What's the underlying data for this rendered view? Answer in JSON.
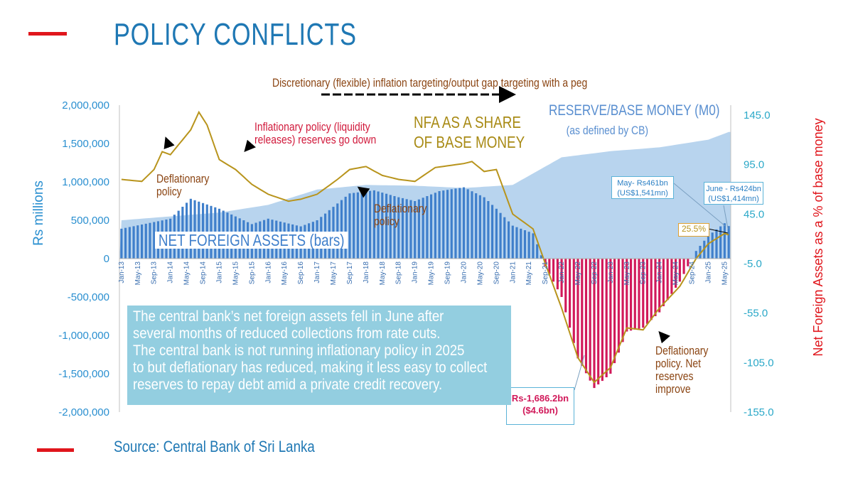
{
  "slide": {
    "title": "POLICY CONFLICTS",
    "source": "Source: Central Bank of Sri Lanka"
  },
  "annotations": {
    "top_banner": "Discretionary (flexible) inflation targeting/output gap targeting with a peg",
    "inflationary_line1": "Inflationary policy (liquidity",
    "inflationary_line2": "releases) reserves go down",
    "deflationary_1_line1": "Deflationary",
    "deflationary_1_line2": "policy",
    "deflationary_2_line1": "Deflationary",
    "deflationary_2_line2": "policy",
    "deflationary_3_line1": "Deflationary",
    "deflationary_3_line2": "policy. Net",
    "deflationary_3_line3": "reserves",
    "deflationary_3_line4": "improve",
    "nfa_share_line1": "NFA AS A SHARE",
    "nfa_share_line2": "OF BASE MONEY",
    "reserve_line1": "RESERVE/BASE MONEY (M0)",
    "reserve_line2": "(as defined by CB)",
    "net_foreign_assets_label": "NET FOREIGN ASSETS (bars)",
    "callout_may_line1": "May- Rs461bn",
    "callout_may_line2": "(US$1,541mn)",
    "callout_june_line1": "June - Rs424bn",
    "callout_june_line2": "(US$1,414mn)",
    "callout_pct": "25.5%",
    "callout_low_line1": "Rs-1,686.2bn",
    "callout_low_line2": "($4.6bn)"
  },
  "infobox": {
    "line1": "The central bank’s net foreign assets fell in June after",
    "line2": "several months of reduced collections from rate cuts.",
    "line3": "The central bank is not running inflationary policy in 2025",
    "line4": "to but deflationary has reduced, making it less easy to collect",
    "line5": "reserves to repay debt amid a private credit recovery."
  },
  "colors": {
    "title": "#1f78b4",
    "deco_bar": "#e0161c",
    "base_money_area": "#b8d4ee",
    "nfa_bar_positive": "#3f7fcb",
    "nfa_bar_negative": "#d1195a",
    "share_line": "#b8941c",
    "left_axis": "#2a8fd0",
    "right_axis_ticks": "#2aa8c8",
    "right_axis_label": "#e0161c",
    "annotation_brown": "#8b4513",
    "annotation_red": "#d11a3c",
    "annotation_olive": "#a88a14",
    "infobox_bg": "#93cee0"
  },
  "chart_data": {
    "type": "bar",
    "x_start": "Jan-13",
    "x_end": "Jun-25",
    "x_tick_labels": [
      "Jan-13",
      "May-13",
      "Sep-13",
      "Jan-14",
      "May-14",
      "Sep-14",
      "Jan-15",
      "May-15",
      "Sep-15",
      "Jan-16",
      "May-16",
      "Sep-16",
      "Jan-17",
      "May-17",
      "Sep-17",
      "Jan-18",
      "May-18",
      "Sep-18",
      "Jan-19",
      "May-19",
      "Sep-19",
      "Jan-20",
      "May-20",
      "Sep-20",
      "Jan-21",
      "May-21",
      "Sep-21",
      "Jan-22",
      "May-22",
      "Sep-22",
      "Jan-23",
      "May-23",
      "Sep-23",
      "Jan-24",
      "May-24",
      "Sep-24",
      "Jan-25",
      "May-25"
    ],
    "ylabel": "Rs millions",
    "ylim": [
      -2000000,
      2000000
    ],
    "y_ticks": [
      2000000,
      1500000,
      1000000,
      500000,
      0,
      -500000,
      -1000000,
      -1500000,
      -2000000
    ],
    "y_tick_labels": [
      "2,000,000",
      "1,500,000",
      "1,000,000",
      "500,000",
      "0",
      "-500,000",
      "-1,000,000",
      "-1,500,000",
      "-2,000,000"
    ],
    "y2label": "Net Foreign Assets as a % of base money",
    "y2lim": [
      -155,
      155
    ],
    "y2_ticks": [
      145,
      95,
      45,
      -5,
      -55,
      -105,
      -155
    ],
    "y2_tick_labels": [
      "145.0",
      "95.0",
      "45.0",
      "-5.0",
      "-55.0",
      "-105.0",
      "-155.0"
    ],
    "series": [
      {
        "name": "NET FOREIGN ASSETS (bars)",
        "kind": "bar",
        "axis": "left",
        "anchors": [
          [
            "Jan-13",
            390000
          ],
          [
            "Jan-14",
            520000
          ],
          [
            "Jun-14",
            780000
          ],
          [
            "Jan-15",
            650000
          ],
          [
            "Sep-15",
            450000
          ],
          [
            "Jan-16",
            520000
          ],
          [
            "Sep-16",
            420000
          ],
          [
            "Jan-17",
            500000
          ],
          [
            "Sep-17",
            850000
          ],
          [
            "Mar-18",
            890000
          ],
          [
            "Sep-18",
            800000
          ],
          [
            "Jan-19",
            750000
          ],
          [
            "Jul-19",
            880000
          ],
          [
            "Jan-20",
            930000
          ],
          [
            "Jun-20",
            800000
          ],
          [
            "Sep-20",
            650000
          ],
          [
            "Jan-21",
            430000
          ],
          [
            "Jun-21",
            330000
          ],
          [
            "Sep-21",
            -100000
          ],
          [
            "Jan-22",
            -500000
          ],
          [
            "May-22",
            -1300000
          ],
          [
            "Sep-22",
            -1686200
          ],
          [
            "Jan-23",
            -1500000
          ],
          [
            "May-23",
            -950000
          ],
          [
            "Sep-23",
            -900000
          ],
          [
            "Jan-24",
            -700000
          ],
          [
            "Jun-24",
            -300000
          ],
          [
            "Oct-24",
            100000
          ],
          [
            "Jan-25",
            300000
          ],
          [
            "May-25",
            461000
          ],
          [
            "Jun-25",
            424000
          ]
        ]
      },
      {
        "name": "RESERVE/BASE MONEY (M0)",
        "kind": "area",
        "axis": "left",
        "anchors": [
          [
            "Jan-13",
            500000
          ],
          [
            "Jan-15",
            600000
          ],
          [
            "Jan-16",
            700000
          ],
          [
            "Jan-17",
            900000
          ],
          [
            "Jan-18",
            960000
          ],
          [
            "Jan-19",
            950000
          ],
          [
            "Jan-20",
            920000
          ],
          [
            "Jan-21",
            960000
          ],
          [
            "Jan-22",
            1320000
          ],
          [
            "Jan-23",
            1400000
          ],
          [
            "Jan-24",
            1450000
          ],
          [
            "Jan-25",
            1550000
          ],
          [
            "Jun-25",
            1650000
          ]
        ]
      },
      {
        "name": "NFA AS A SHARE OF BASE MONEY",
        "kind": "line",
        "axis": "right",
        "anchors": [
          [
            "Jan-13",
            80
          ],
          [
            "Jun-13",
            78
          ],
          [
            "Sep-13",
            90
          ],
          [
            "Nov-13",
            108
          ],
          [
            "Jan-14",
            105
          ],
          [
            "Jun-14",
            130
          ],
          [
            "Aug-14",
            148
          ],
          [
            "Oct-14",
            135
          ],
          [
            "Jan-15",
            100
          ],
          [
            "May-15",
            90
          ],
          [
            "Sep-15",
            75
          ],
          [
            "Jan-16",
            65
          ],
          [
            "Jun-16",
            58
          ],
          [
            "Sep-16",
            60
          ],
          [
            "Jan-17",
            65
          ],
          [
            "Jun-17",
            80
          ],
          [
            "Sep-17",
            90
          ],
          [
            "Jan-18",
            93
          ],
          [
            "May-18",
            84
          ],
          [
            "Sep-18",
            80
          ],
          [
            "Jan-19",
            78
          ],
          [
            "Jun-19",
            92
          ],
          [
            "Jan-20",
            96
          ],
          [
            "Mar-20",
            98
          ],
          [
            "Jun-20",
            88
          ],
          [
            "Sep-20",
            90
          ],
          [
            "Jan-21",
            45
          ],
          [
            "Jun-21",
            30
          ],
          [
            "Sep-21",
            -5
          ],
          [
            "Jan-22",
            -50
          ],
          [
            "May-22",
            -100
          ],
          [
            "Sep-22",
            -125
          ],
          [
            "Jan-23",
            -110
          ],
          [
            "May-23",
            -70
          ],
          [
            "Sep-23",
            -72
          ],
          [
            "Jan-24",
            -50
          ],
          [
            "Jun-24",
            -28
          ],
          [
            "Oct-24",
            0
          ],
          [
            "Jan-25",
            15
          ],
          [
            "May-25",
            25.5
          ],
          [
            "Jun-25",
            24
          ]
        ]
      }
    ],
    "legend": "none",
    "grid": false
  }
}
